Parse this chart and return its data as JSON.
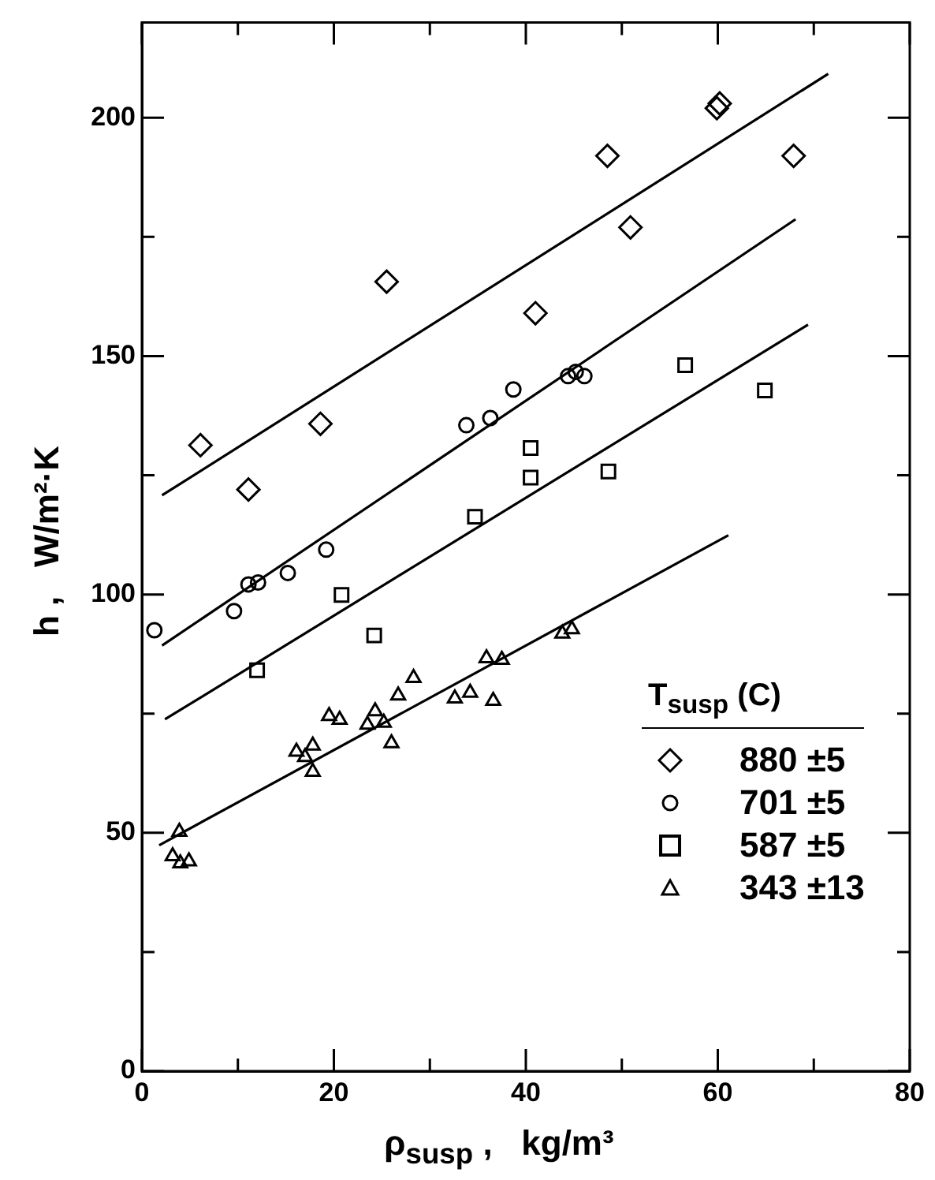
{
  "chart_data": {
    "type": "scatter",
    "xlabel": "ρ$_{susp}$ ,   kg/m³",
    "ylabel": "h ,   W/m²·K",
    "legend_title": "T$_{susp}$ (C)",
    "legend": "bottom right",
    "grid": false,
    "xlim": [
      0,
      80
    ],
    "xticks": [
      0,
      {
        "value": 10,
        "label": null
      },
      20,
      {
        "value": 30,
        "label": null
      },
      40,
      {
        "value": 50,
        "label": null
      },
      60,
      {
        "value": 70,
        "label": null
      },
      80
    ],
    "ylim": [
      0,
      220
    ],
    "yticks": [
      0,
      {
        "value": 25,
        "label": null
      },
      50,
      {
        "value": 75,
        "label": null
      },
      100,
      {
        "value": 125,
        "label": null
      },
      150,
      {
        "value": 175,
        "label": null
      },
      200
    ],
    "series": [
      {
        "name": "880 ±5",
        "type": "scatter",
        "marker": "diamond",
        "color": "#000000",
        "x": [
          59.9,
          60.2,
          48.5,
          67.9,
          50.9,
          25.5,
          41,
          6.1,
          18.6,
          11.1
        ],
        "values": [
          202,
          203,
          192,
          192,
          177,
          165.6,
          159,
          131.3,
          135.8,
          122
        ]
      },
      {
        "name": "701 ±5",
        "type": "scatter",
        "marker": "circle",
        "color": "#000000",
        "x": [
          38.7,
          44.4,
          45.2,
          46.1,
          33.8,
          36.3,
          19.2,
          15.2,
          11.1,
          12.1,
          9.6,
          1.3
        ],
        "values": [
          143,
          145.8,
          146.7,
          145.8,
          135.5,
          137,
          109.4,
          104.5,
          102.1,
          102.5,
          96.5,
          92.5
        ]
      },
      {
        "name": "587 ±5",
        "type": "scatter",
        "marker": "square",
        "color": "#000000",
        "x": [
          56.6,
          64.9,
          40.5,
          40.5,
          48.6,
          34.7,
          20.8,
          24.2,
          12
        ],
        "values": [
          148.1,
          142.8,
          130.7,
          124.5,
          125.8,
          116.3,
          99.9,
          91.4,
          84.1
        ]
      },
      {
        "name": "343 ±13",
        "type": "scatter",
        "marker": "triangle",
        "color": "#000000",
        "x": [
          43.8,
          44.8,
          35.9,
          37.5,
          28.3,
          26.7,
          32.6,
          34.2,
          36.6,
          19.5,
          20.6,
          24.3,
          23.5,
          25.2,
          26,
          16.1,
          17.8,
          17,
          17.8,
          3.9,
          3.2,
          4,
          4.9
        ],
        "values": [
          91.8,
          92.7,
          86.6,
          86.3,
          82.5,
          78.8,
          78.2,
          79.4,
          77.7,
          74.5,
          73.7,
          75.5,
          72.7,
          73.1,
          68.8,
          67,
          68.3,
          65.9,
          62.8,
          50.2,
          45.1,
          43.6,
          44
        ]
      },
      {
        "type": "line",
        "line_style": "solid",
        "color": "#000000",
        "x": [
          2.1,
          71.5
        ],
        "values": [
          120.8,
          209.2
        ]
      },
      {
        "type": "line",
        "line_style": "solid",
        "color": "#000000",
        "x": [
          2.1,
          68.1
        ],
        "values": [
          89.3,
          178.7
        ]
      },
      {
        "type": "line",
        "line_style": "solid",
        "color": "#000000",
        "x": [
          2.4,
          69.4
        ],
        "values": [
          73.8,
          156.6
        ]
      },
      {
        "type": "line",
        "line_style": "solid",
        "color": "#000000",
        "x": [
          1.8,
          61.1
        ],
        "values": [
          47.4,
          112.4
        ]
      }
    ]
  }
}
